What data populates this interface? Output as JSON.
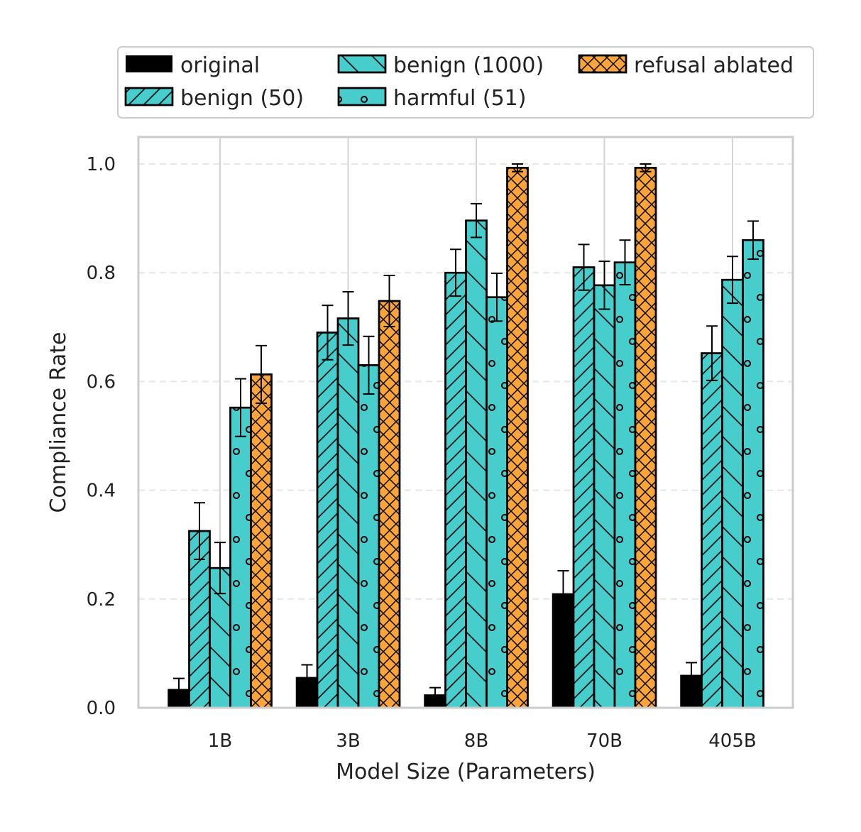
{
  "chart_data": {
    "type": "bar",
    "title": "",
    "xlabel": "Model Size (Parameters)",
    "ylabel": "Compliance Rate",
    "ylim": [
      0,
      1.05
    ],
    "yticks": [
      0.0,
      0.2,
      0.4,
      0.6,
      0.8,
      1.0
    ],
    "ytick_labels": [
      "0.0",
      "0.2",
      "0.4",
      "0.6",
      "0.8",
      "1.0"
    ],
    "grid": true,
    "legend_position": "top",
    "categories": [
      "1B",
      "3B",
      "8B",
      "70B",
      "405B"
    ],
    "series": [
      {
        "name": "original",
        "color": "#000000",
        "hatch": "none",
        "values": [
          0.033,
          0.055,
          0.023,
          0.209,
          0.059
        ],
        "error": [
          0.021,
          0.024,
          0.014,
          0.043,
          0.024
        ]
      },
      {
        "name": "benign (50)",
        "color": "#48CDCD",
        "hatch": "diagonal",
        "values": [
          0.325,
          0.69,
          0.8,
          0.81,
          0.652
        ],
        "error": [
          0.052,
          0.05,
          0.043,
          0.042,
          0.05
        ]
      },
      {
        "name": "benign (1000)",
        "color": "#48CDCD",
        "hatch": "backslash",
        "values": [
          0.257,
          0.716,
          0.896,
          0.777,
          0.787
        ],
        "error": [
          0.047,
          0.049,
          0.031,
          0.044,
          0.043
        ]
      },
      {
        "name": "harmful (51)",
        "color": "#48CDCD",
        "hatch": "circles",
        "values": [
          0.552,
          0.63,
          0.755,
          0.819,
          0.86
        ],
        "error": [
          0.053,
          0.053,
          0.044,
          0.041,
          0.035
        ]
      },
      {
        "name": "refusal ablated",
        "color": "#FAA43A",
        "hatch": "cross",
        "values": [
          0.613,
          0.748,
          0.993,
          0.993,
          null
        ],
        "error": [
          0.053,
          0.047,
          0.007,
          0.007,
          null
        ]
      }
    ]
  }
}
